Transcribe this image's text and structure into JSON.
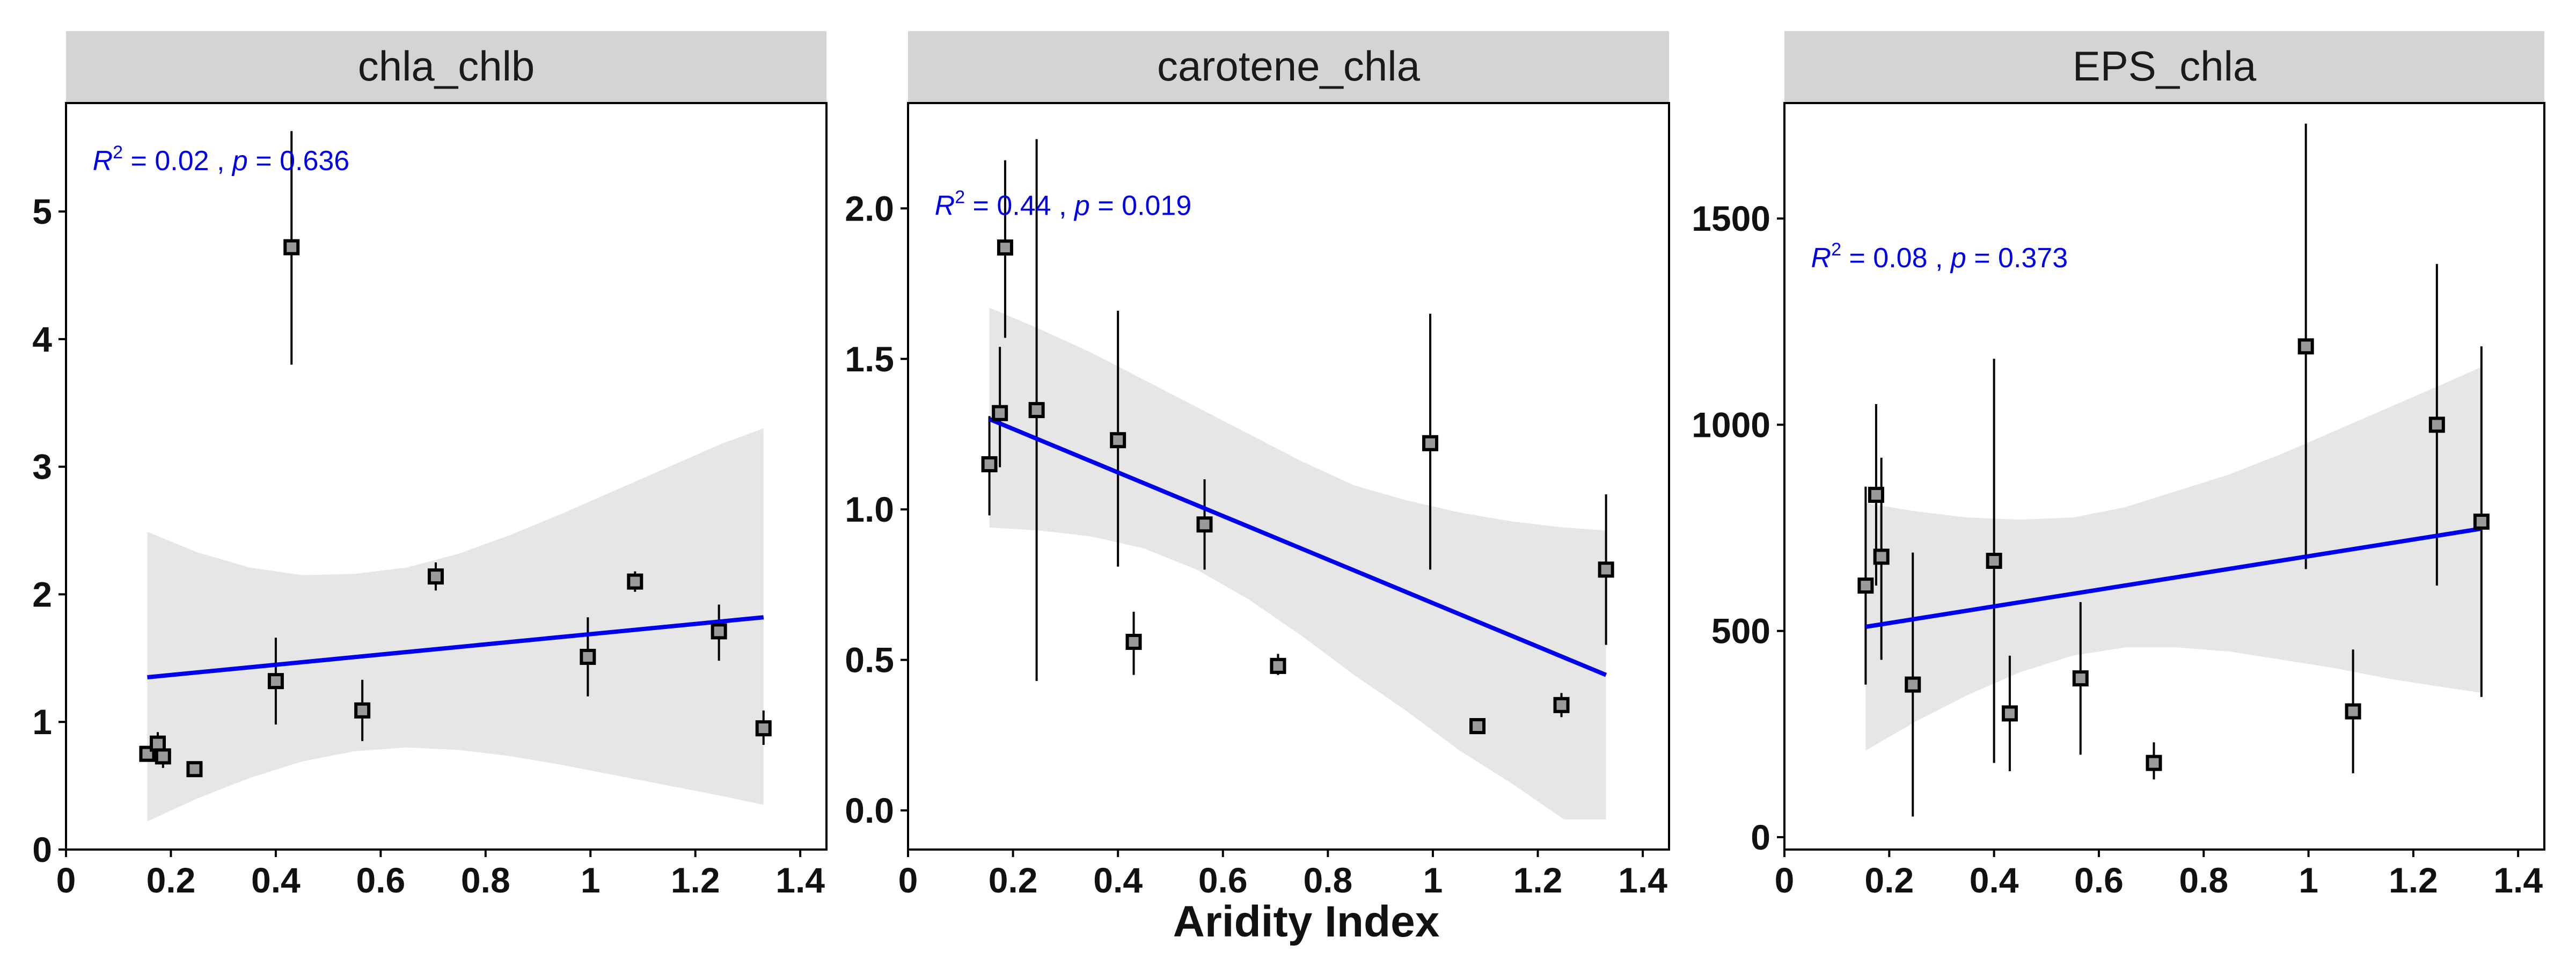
{
  "figure": {
    "xlabel": "Aridity Index"
  },
  "chart_data": [
    {
      "type": "scatter",
      "title": "chla_chlb",
      "xlabel": "",
      "ylabel": "",
      "xlim": [
        0,
        1.45
      ],
      "ylim": [
        0,
        5.85
      ],
      "xticks": [
        0,
        0.2,
        0.4,
        0.6,
        0.8,
        1,
        1.2,
        1.4
      ],
      "xtick_labels": [
        "0",
        "0.2",
        "0.4",
        "0.6",
        "0.8",
        "1",
        "1.2",
        "1.4"
      ],
      "yticks": [
        0,
        1,
        2,
        3,
        4,
        5
      ],
      "ytick_labels": [
        "0",
        "1",
        "2",
        "3",
        "4",
        "5"
      ],
      "stat": {
        "r2_label": "R",
        "r2_sup": "2",
        "r2_value": " = 0.02 , ",
        "p_label": "p",
        "p_value": " = 0.636"
      },
      "points": [
        {
          "x": 0.155,
          "y": 0.75,
          "lo": 0.73,
          "hi": 0.77,
          "fill": "#9a9a9a"
        },
        {
          "x": 0.175,
          "y": 0.83,
          "lo": 0.75,
          "hi": 0.92,
          "fill": "#9a9a9a"
        },
        {
          "x": 0.185,
          "y": 0.73,
          "lo": 0.64,
          "hi": 0.82,
          "fill": "#9a9a9a"
        },
        {
          "x": 0.245,
          "y": 0.63,
          "lo": 0.61,
          "hi": 0.66,
          "fill": "#9a9a9a"
        },
        {
          "x": 0.4,
          "y": 1.32,
          "lo": 0.98,
          "hi": 1.66,
          "fill": "#9a9a9a"
        },
        {
          "x": 0.43,
          "y": 4.72,
          "lo": 3.8,
          "hi": 5.63,
          "fill": "#9a9a9a"
        },
        {
          "x": 0.565,
          "y": 1.09,
          "lo": 0.85,
          "hi": 1.33,
          "fill": "#9a9a9a"
        },
        {
          "x": 0.705,
          "y": 2.14,
          "lo": 2.03,
          "hi": 2.25,
          "fill": "#9a9a9a"
        },
        {
          "x": 0.995,
          "y": 1.51,
          "lo": 1.2,
          "hi": 1.82,
          "fill": "#9a9a9a"
        },
        {
          "x": 1.085,
          "y": 2.1,
          "lo": 2.02,
          "hi": 2.18,
          "fill": "#9a9a9a"
        },
        {
          "x": 1.245,
          "y": 1.71,
          "lo": 1.48,
          "hi": 1.92,
          "fill": "#9a9a9a"
        },
        {
          "x": 1.33,
          "y": 0.95,
          "lo": 0.82,
          "hi": 1.09,
          "fill": "#9a9a9a"
        }
      ],
      "fit": {
        "x": [
          0.155,
          1.33
        ],
        "y": [
          1.35,
          1.82
        ]
      },
      "band": {
        "x": [
          0.155,
          0.25,
          0.35,
          0.45,
          0.55,
          0.65,
          0.75,
          0.85,
          0.95,
          1.05,
          1.15,
          1.25,
          1.33
        ],
        "lower": [
          0.22,
          0.4,
          0.56,
          0.69,
          0.77,
          0.8,
          0.78,
          0.73,
          0.66,
          0.58,
          0.5,
          0.42,
          0.35
        ],
        "upper": [
          2.49,
          2.33,
          2.21,
          2.15,
          2.16,
          2.21,
          2.32,
          2.47,
          2.64,
          2.82,
          3.0,
          3.18,
          3.3
        ]
      }
    },
    {
      "type": "scatter",
      "title": "carotene_chla",
      "xlabel": "Aridity Index",
      "ylabel": "",
      "xlim": [
        0,
        1.45
      ],
      "ylim": [
        -0.13,
        2.35
      ],
      "xticks": [
        0,
        0.2,
        0.4,
        0.6,
        0.8,
        1,
        1.2,
        1.4
      ],
      "xtick_labels": [
        "0",
        "0.2",
        "0.4",
        "0.6",
        "0.8",
        "1",
        "1.2",
        "1.4"
      ],
      "yticks": [
        0,
        0.5,
        1,
        1.5,
        2
      ],
      "ytick_labels": [
        "0.0",
        "0.5",
        "1.0",
        "1.5",
        "2.0"
      ],
      "stat": {
        "r2_label": "R",
        "r2_sup": "2",
        "r2_value": " = 0.44 , ",
        "p_label": "p",
        "p_value": " = 0.019"
      },
      "points": [
        {
          "x": 0.155,
          "y": 1.15,
          "lo": 0.98,
          "hi": 1.31,
          "fill": "#9a9a9a"
        },
        {
          "x": 0.175,
          "y": 1.32,
          "lo": 1.14,
          "hi": 1.54,
          "fill": "#9a9a9a"
        },
        {
          "x": 0.185,
          "y": 1.87,
          "lo": 1.57,
          "hi": 2.16,
          "fill": "#9a9a9a"
        },
        {
          "x": 0.245,
          "y": 1.33,
          "lo": 0.43,
          "hi": 2.23,
          "fill": "#9a9a9a"
        },
        {
          "x": 0.4,
          "y": 1.23,
          "lo": 0.81,
          "hi": 1.66,
          "fill": "#9a9a9a"
        },
        {
          "x": 0.43,
          "y": 0.56,
          "lo": 0.45,
          "hi": 0.66,
          "fill": "#9a9a9a"
        },
        {
          "x": 0.565,
          "y": 0.95,
          "lo": 0.8,
          "hi": 1.1,
          "fill": "#9a9a9a"
        },
        {
          "x": 0.705,
          "y": 0.48,
          "lo": 0.45,
          "hi": 0.52,
          "fill": "#9a9a9a"
        },
        {
          "x": 0.995,
          "y": 1.22,
          "lo": 0.8,
          "hi": 1.65,
          "fill": "#9a9a9a"
        },
        {
          "x": 1.085,
          "y": 0.28,
          "lo": 0.27,
          "hi": 0.3,
          "fill": "#9a9a9a"
        },
        {
          "x": 1.245,
          "y": 0.35,
          "lo": 0.31,
          "hi": 0.39,
          "fill": "#9a9a9a"
        },
        {
          "x": 1.33,
          "y": 0.8,
          "lo": 0.55,
          "hi": 1.05,
          "fill": "#9a9a9a"
        }
      ],
      "fit": {
        "x": [
          0.155,
          1.33
        ],
        "y": [
          1.3,
          0.45
        ]
      },
      "band": {
        "x": [
          0.155,
          0.25,
          0.35,
          0.45,
          0.55,
          0.65,
          0.75,
          0.85,
          0.95,
          1.05,
          1.15,
          1.25,
          1.33
        ],
        "lower": [
          0.94,
          0.93,
          0.91,
          0.87,
          0.8,
          0.7,
          0.58,
          0.45,
          0.33,
          0.2,
          0.09,
          -0.03,
          -0.03
        ],
        "upper": [
          1.67,
          1.6,
          1.52,
          1.43,
          1.34,
          1.25,
          1.16,
          1.08,
          1.03,
          0.99,
          0.96,
          0.94,
          0.93
        ]
      }
    },
    {
      "type": "scatter",
      "title": "EPS_chla",
      "xlabel": "",
      "ylabel": "",
      "xlim": [
        0,
        1.45
      ],
      "ylim": [
        -30,
        1780
      ],
      "xticks": [
        0,
        0.2,
        0.4,
        0.6,
        0.8,
        1,
        1.2,
        1.4
      ],
      "xtick_labels": [
        "0",
        "0.2",
        "0.4",
        "0.6",
        "0.8",
        "1",
        "1.2",
        "1.4"
      ],
      "yticks": [
        0,
        500,
        1000,
        1500
      ],
      "ytick_labels": [
        "0",
        "500",
        "1000",
        "1500"
      ],
      "stat": {
        "r2_label": "R",
        "r2_sup": "2",
        "r2_value": " = 0.08 , ",
        "p_label": "p",
        "p_value": " = 0.373"
      },
      "points": [
        {
          "x": 0.155,
          "y": 610,
          "lo": 370,
          "hi": 850,
          "fill": "#9a9a9a"
        },
        {
          "x": 0.175,
          "y": 830,
          "lo": 610,
          "hi": 1050,
          "fill": "#9a9a9a"
        },
        {
          "x": 0.185,
          "y": 680,
          "lo": 430,
          "hi": 920,
          "fill": "#9a9a9a"
        },
        {
          "x": 0.245,
          "y": 370,
          "lo": 50,
          "hi": 690,
          "fill": "#9a9a9a"
        },
        {
          "x": 0.4,
          "y": 670,
          "lo": 180,
          "hi": 1160,
          "fill": "#9a9a9a"
        },
        {
          "x": 0.43,
          "y": 300,
          "lo": 160,
          "hi": 440,
          "fill": "#9a9a9a"
        },
        {
          "x": 0.565,
          "y": 385,
          "lo": 200,
          "hi": 570,
          "fill": "#9a9a9a"
        },
        {
          "x": 0.705,
          "y": 180,
          "lo": 140,
          "hi": 230,
          "fill": "#9a9a9a"
        },
        {
          "x": 0.995,
          "y": 1190,
          "lo": 650,
          "hi": 1730,
          "fill": "#9a9a9a"
        },
        {
          "x": 1.085,
          "y": 305,
          "lo": 155,
          "hi": 455,
          "fill": "#9a9a9a"
        },
        {
          "x": 1.245,
          "y": 1000,
          "lo": 610,
          "hi": 1390,
          "fill": "#9a9a9a"
        },
        {
          "x": 1.33,
          "y": 765,
          "lo": 340,
          "hi": 1190,
          "fill": "#9a9a9a"
        }
      ],
      "fit": {
        "x": [
          0.155,
          1.33
        ],
        "y": [
          510,
          748
        ]
      },
      "band": {
        "x": [
          0.155,
          0.25,
          0.35,
          0.45,
          0.55,
          0.65,
          0.75,
          0.85,
          0.95,
          1.05,
          1.15,
          1.25,
          1.33
        ],
        "lower": [
          210,
          280,
          345,
          400,
          440,
          460,
          460,
          450,
          430,
          410,
          385,
          365,
          350
        ],
        "upper": [
          810,
          790,
          775,
          770,
          775,
          800,
          840,
          880,
          930,
          985,
          1040,
          1095,
          1140
        ]
      }
    }
  ]
}
